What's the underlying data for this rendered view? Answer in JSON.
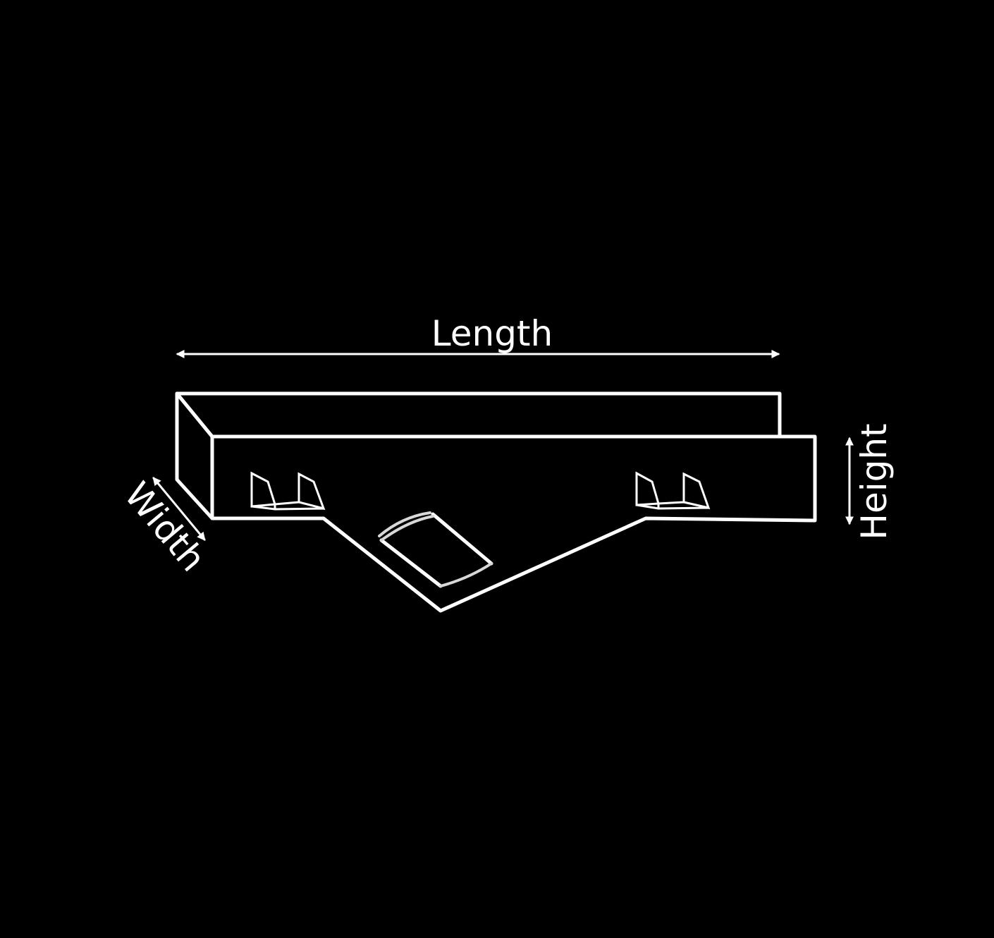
{
  "labels": {
    "length": "Length",
    "width": "Width",
    "height": "Height"
  },
  "colors": {
    "background": "#000000",
    "line": "#ffffff"
  }
}
